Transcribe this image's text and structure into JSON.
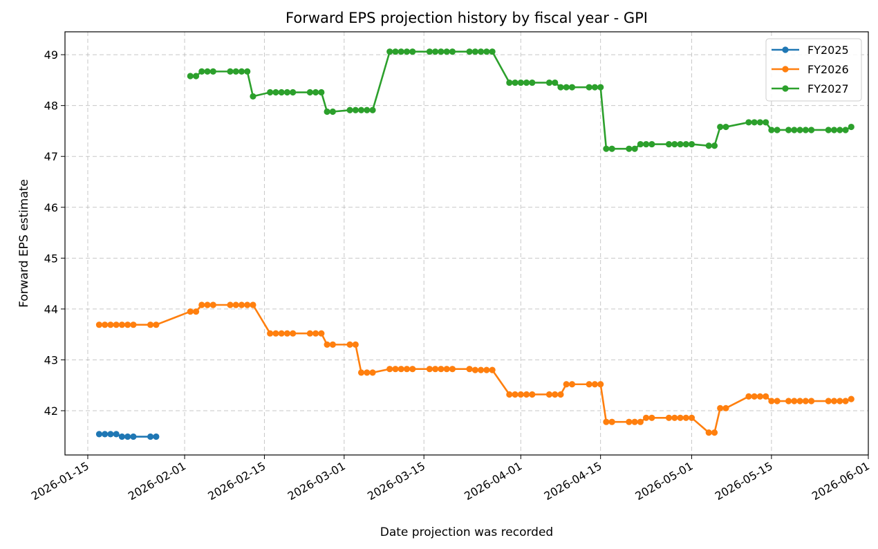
{
  "chart_data": {
    "type": "line",
    "title": "Forward EPS projection history by fiscal year - GPI",
    "xlabel": "Date projection was recorded",
    "ylabel": "Forward EPS estimate",
    "x_ticks": [
      "2026-01-15",
      "2026-02-01",
      "2026-02-15",
      "2026-03-01",
      "2026-03-15",
      "2026-04-01",
      "2026-04-15",
      "2026-05-01",
      "2026-05-15",
      "2026-06-01"
    ],
    "y_ticks": [
      42,
      43,
      44,
      45,
      46,
      47,
      48,
      49
    ],
    "xlim": [
      "2026-01-11",
      "2026-06-01"
    ],
    "ylim": [
      41.13,
      49.45
    ],
    "grid": true,
    "legend_position": "top-right",
    "series": [
      {
        "name": "FY2025",
        "color": "#1f77b4",
        "points": [
          [
            "2026-01-17",
            41.54
          ],
          [
            "2026-01-18",
            41.54
          ],
          [
            "2026-01-19",
            41.54
          ],
          [
            "2026-01-20",
            41.54
          ],
          [
            "2026-01-21",
            41.49
          ],
          [
            "2026-01-22",
            41.49
          ],
          [
            "2026-01-23",
            41.49
          ],
          [
            "2026-01-26",
            41.49
          ],
          [
            "2026-01-27",
            41.49
          ]
        ]
      },
      {
        "name": "FY2026",
        "color": "#ff7f0e",
        "points": [
          [
            "2026-01-17",
            43.69
          ],
          [
            "2026-01-18",
            43.69
          ],
          [
            "2026-01-19",
            43.69
          ],
          [
            "2026-01-20",
            43.69
          ],
          [
            "2026-01-21",
            43.69
          ],
          [
            "2026-01-22",
            43.69
          ],
          [
            "2026-01-23",
            43.69
          ],
          [
            "2026-01-26",
            43.69
          ],
          [
            "2026-01-27",
            43.69
          ],
          [
            "2026-02-02",
            43.95
          ],
          [
            "2026-02-03",
            43.95
          ],
          [
            "2026-02-04",
            44.08
          ],
          [
            "2026-02-05",
            44.08
          ],
          [
            "2026-02-06",
            44.08
          ],
          [
            "2026-02-09",
            44.08
          ],
          [
            "2026-02-10",
            44.08
          ],
          [
            "2026-02-11",
            44.08
          ],
          [
            "2026-02-12",
            44.08
          ],
          [
            "2026-02-13",
            44.08
          ],
          [
            "2026-02-16",
            43.52
          ],
          [
            "2026-02-17",
            43.52
          ],
          [
            "2026-02-18",
            43.52
          ],
          [
            "2026-02-19",
            43.52
          ],
          [
            "2026-02-20",
            43.52
          ],
          [
            "2026-02-23",
            43.52
          ],
          [
            "2026-02-24",
            43.52
          ],
          [
            "2026-02-25",
            43.52
          ],
          [
            "2026-02-26",
            43.3
          ],
          [
            "2026-02-27",
            43.3
          ],
          [
            "2026-03-02",
            43.3
          ],
          [
            "2026-03-03",
            43.3
          ],
          [
            "2026-03-04",
            42.75
          ],
          [
            "2026-03-05",
            42.75
          ],
          [
            "2026-03-06",
            42.75
          ],
          [
            "2026-03-09",
            42.82
          ],
          [
            "2026-03-10",
            42.82
          ],
          [
            "2026-03-11",
            42.82
          ],
          [
            "2026-03-12",
            42.82
          ],
          [
            "2026-03-13",
            42.82
          ],
          [
            "2026-03-16",
            42.82
          ],
          [
            "2026-03-17",
            42.82
          ],
          [
            "2026-03-18",
            42.82
          ],
          [
            "2026-03-19",
            42.82
          ],
          [
            "2026-03-20",
            42.82
          ],
          [
            "2026-03-23",
            42.82
          ],
          [
            "2026-03-24",
            42.8
          ],
          [
            "2026-03-25",
            42.8
          ],
          [
            "2026-03-26",
            42.8
          ],
          [
            "2026-03-27",
            42.8
          ],
          [
            "2026-03-30",
            42.32
          ],
          [
            "2026-03-31",
            42.32
          ],
          [
            "2026-04-01",
            42.32
          ],
          [
            "2026-04-02",
            42.32
          ],
          [
            "2026-04-03",
            42.32
          ],
          [
            "2026-04-06",
            42.32
          ],
          [
            "2026-04-07",
            42.32
          ],
          [
            "2026-04-08",
            42.32
          ],
          [
            "2026-04-09",
            42.52
          ],
          [
            "2026-04-10",
            42.52
          ],
          [
            "2026-04-13",
            42.52
          ],
          [
            "2026-04-14",
            42.52
          ],
          [
            "2026-04-15",
            42.52
          ],
          [
            "2026-04-16",
            41.78
          ],
          [
            "2026-04-17",
            41.78
          ],
          [
            "2026-04-20",
            41.78
          ],
          [
            "2026-04-21",
            41.78
          ],
          [
            "2026-04-22",
            41.78
          ],
          [
            "2026-04-23",
            41.86
          ],
          [
            "2026-04-24",
            41.86
          ],
          [
            "2026-04-27",
            41.86
          ],
          [
            "2026-04-28",
            41.86
          ],
          [
            "2026-04-29",
            41.86
          ],
          [
            "2026-04-30",
            41.86
          ],
          [
            "2026-05-01",
            41.86
          ],
          [
            "2026-05-04",
            41.57
          ],
          [
            "2026-05-05",
            41.57
          ],
          [
            "2026-05-06",
            42.05
          ],
          [
            "2026-05-07",
            42.05
          ],
          [
            "2026-05-11",
            42.28
          ],
          [
            "2026-05-12",
            42.28
          ],
          [
            "2026-05-13",
            42.28
          ],
          [
            "2026-05-14",
            42.28
          ],
          [
            "2026-05-15",
            42.19
          ],
          [
            "2026-05-16",
            42.19
          ],
          [
            "2026-05-18",
            42.19
          ],
          [
            "2026-05-19",
            42.19
          ],
          [
            "2026-05-20",
            42.19
          ],
          [
            "2026-05-21",
            42.19
          ],
          [
            "2026-05-22",
            42.19
          ],
          [
            "2026-05-25",
            42.19
          ],
          [
            "2026-05-26",
            42.19
          ],
          [
            "2026-05-27",
            42.19
          ],
          [
            "2026-05-28",
            42.19
          ],
          [
            "2026-05-29",
            42.23
          ]
        ]
      },
      {
        "name": "FY2027",
        "color": "#2ca02c",
        "points": [
          [
            "2026-02-02",
            48.58
          ],
          [
            "2026-02-03",
            48.58
          ],
          [
            "2026-02-04",
            48.67
          ],
          [
            "2026-02-05",
            48.67
          ],
          [
            "2026-02-06",
            48.67
          ],
          [
            "2026-02-09",
            48.67
          ],
          [
            "2026-02-10",
            48.67
          ],
          [
            "2026-02-11",
            48.67
          ],
          [
            "2026-02-12",
            48.67
          ],
          [
            "2026-02-13",
            48.18
          ],
          [
            "2026-02-16",
            48.26
          ],
          [
            "2026-02-17",
            48.26
          ],
          [
            "2026-02-18",
            48.26
          ],
          [
            "2026-02-19",
            48.26
          ],
          [
            "2026-02-20",
            48.26
          ],
          [
            "2026-02-23",
            48.26
          ],
          [
            "2026-02-24",
            48.26
          ],
          [
            "2026-02-25",
            48.26
          ],
          [
            "2026-02-26",
            47.88
          ],
          [
            "2026-02-27",
            47.88
          ],
          [
            "2026-03-02",
            47.91
          ],
          [
            "2026-03-03",
            47.91
          ],
          [
            "2026-03-04",
            47.91
          ],
          [
            "2026-03-05",
            47.91
          ],
          [
            "2026-03-06",
            47.91
          ],
          [
            "2026-03-09",
            49.06
          ],
          [
            "2026-03-10",
            49.06
          ],
          [
            "2026-03-11",
            49.06
          ],
          [
            "2026-03-12",
            49.06
          ],
          [
            "2026-03-13",
            49.06
          ],
          [
            "2026-03-16",
            49.06
          ],
          [
            "2026-03-17",
            49.06
          ],
          [
            "2026-03-18",
            49.06
          ],
          [
            "2026-03-19",
            49.06
          ],
          [
            "2026-03-20",
            49.06
          ],
          [
            "2026-03-23",
            49.06
          ],
          [
            "2026-03-24",
            49.06
          ],
          [
            "2026-03-25",
            49.06
          ],
          [
            "2026-03-26",
            49.06
          ],
          [
            "2026-03-27",
            49.06
          ],
          [
            "2026-03-30",
            48.45
          ],
          [
            "2026-03-31",
            48.45
          ],
          [
            "2026-04-01",
            48.45
          ],
          [
            "2026-04-02",
            48.45
          ],
          [
            "2026-04-03",
            48.45
          ],
          [
            "2026-04-06",
            48.45
          ],
          [
            "2026-04-07",
            48.45
          ],
          [
            "2026-04-08",
            48.36
          ],
          [
            "2026-04-09",
            48.36
          ],
          [
            "2026-04-10",
            48.36
          ],
          [
            "2026-04-13",
            48.36
          ],
          [
            "2026-04-14",
            48.36
          ],
          [
            "2026-04-15",
            48.36
          ],
          [
            "2026-04-16",
            47.15
          ],
          [
            "2026-04-17",
            47.15
          ],
          [
            "2026-04-20",
            47.15
          ],
          [
            "2026-04-21",
            47.15
          ],
          [
            "2026-04-22",
            47.24
          ],
          [
            "2026-04-23",
            47.24
          ],
          [
            "2026-04-24",
            47.24
          ],
          [
            "2026-04-27",
            47.24
          ],
          [
            "2026-04-28",
            47.24
          ],
          [
            "2026-04-29",
            47.24
          ],
          [
            "2026-04-30",
            47.24
          ],
          [
            "2026-05-01",
            47.24
          ],
          [
            "2026-05-04",
            47.21
          ],
          [
            "2026-05-05",
            47.21
          ],
          [
            "2026-05-06",
            47.58
          ],
          [
            "2026-05-07",
            47.58
          ],
          [
            "2026-05-11",
            47.67
          ],
          [
            "2026-05-12",
            47.67
          ],
          [
            "2026-05-13",
            47.67
          ],
          [
            "2026-05-14",
            47.67
          ],
          [
            "2026-05-15",
            47.52
          ],
          [
            "2026-05-16",
            47.52
          ],
          [
            "2026-05-18",
            47.52
          ],
          [
            "2026-05-19",
            47.52
          ],
          [
            "2026-05-20",
            47.52
          ],
          [
            "2026-05-21",
            47.52
          ],
          [
            "2026-05-22",
            47.52
          ],
          [
            "2026-05-25",
            47.52
          ],
          [
            "2026-05-26",
            47.52
          ],
          [
            "2026-05-27",
            47.52
          ],
          [
            "2026-05-28",
            47.52
          ],
          [
            "2026-05-29",
            47.58
          ]
        ]
      }
    ]
  }
}
